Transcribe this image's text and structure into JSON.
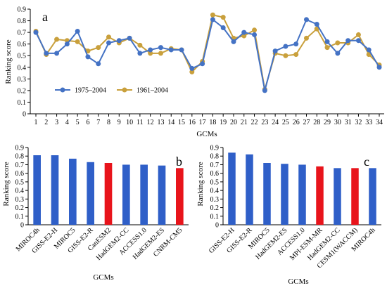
{
  "chart_data": [
    {
      "type": "line",
      "panel_label": "a",
      "xlabel": "GCMs",
      "ylabel": "Ranking score",
      "ylim": [
        0,
        0.9
      ],
      "yticks": [
        0,
        0.1,
        0.2,
        0.3,
        0.4,
        0.5,
        0.6,
        0.7,
        0.8,
        0.9
      ],
      "x": [
        1,
        2,
        3,
        4,
        5,
        6,
        7,
        8,
        9,
        10,
        11,
        12,
        13,
        14,
        15,
        16,
        17,
        18,
        19,
        20,
        21,
        22,
        23,
        24,
        25,
        26,
        27,
        28,
        29,
        30,
        31,
        32,
        33,
        34
      ],
      "legend_position": "middle-left",
      "series": [
        {
          "name": "1975–2004",
          "color": "#4472c4",
          "values": [
            0.7,
            0.52,
            0.52,
            0.6,
            0.71,
            0.49,
            0.43,
            0.61,
            0.63,
            0.65,
            0.52,
            0.55,
            0.57,
            0.55,
            0.55,
            0.39,
            0.43,
            0.81,
            0.74,
            0.62,
            0.7,
            0.68,
            0.2,
            0.54,
            0.58,
            0.6,
            0.81,
            0.77,
            0.62,
            0.52,
            0.63,
            0.63,
            0.55,
            0.4
          ]
        },
        {
          "name": "1961–2004",
          "color": "#c9a03c",
          "values": [
            0.71,
            0.51,
            0.64,
            0.63,
            0.62,
            0.54,
            0.57,
            0.66,
            0.61,
            0.65,
            0.59,
            0.52,
            0.52,
            0.56,
            0.55,
            0.36,
            0.45,
            0.85,
            0.83,
            0.65,
            0.67,
            0.72,
            0.21,
            0.52,
            0.5,
            0.51,
            0.65,
            0.73,
            0.57,
            0.61,
            0.61,
            0.68,
            0.51,
            0.42
          ]
        }
      ]
    },
    {
      "type": "bar",
      "panel_label": "b",
      "xlabel": "GCMs",
      "ylabel": "Ranking score",
      "ylim": [
        0,
        0.9
      ],
      "yticks": [
        0,
        0.1,
        0.2,
        0.3,
        0.4,
        0.5,
        0.6,
        0.7,
        0.8,
        0.9
      ],
      "categories": [
        "MIROC4h",
        "GISS-E2-H",
        "MIROC5",
        "GISS-E2-R",
        "CanESM2",
        "HadGEM2-CC",
        "ACCESS1.0",
        "HadGEM2-ES",
        "CNRM-CM5"
      ],
      "values": [
        0.81,
        0.81,
        0.77,
        0.73,
        0.72,
        0.7,
        0.7,
        0.69,
        0.66
      ],
      "colors": [
        "#2f5fc8",
        "#2f5fc8",
        "#2f5fc8",
        "#2f5fc8",
        "#e8141b",
        "#2f5fc8",
        "#2f5fc8",
        "#2f5fc8",
        "#e8141b"
      ]
    },
    {
      "type": "bar",
      "panel_label": "c",
      "xlabel": "GCMs",
      "ylabel": "Ranking score",
      "ylim": [
        0,
        0.9
      ],
      "yticks": [
        0,
        0.1,
        0.2,
        0.3,
        0.4,
        0.5,
        0.6,
        0.7,
        0.8,
        0.9
      ],
      "categories": [
        "GISS-E2-H",
        "GISS-E2-R",
        "MIROC5",
        "HadGEM2-ES",
        "ACCESS1.0",
        "MPI-ESM-MR",
        "HadGEM2-CC",
        "CESM1(WACCM)",
        "MIROC4h"
      ],
      "values": [
        0.84,
        0.82,
        0.72,
        0.71,
        0.7,
        0.68,
        0.66,
        0.66,
        0.66
      ],
      "colors": [
        "#2f5fc8",
        "#2f5fc8",
        "#2f5fc8",
        "#2f5fc8",
        "#2f5fc8",
        "#e8141b",
        "#2f5fc8",
        "#e8141b",
        "#2f5fc8"
      ]
    }
  ]
}
